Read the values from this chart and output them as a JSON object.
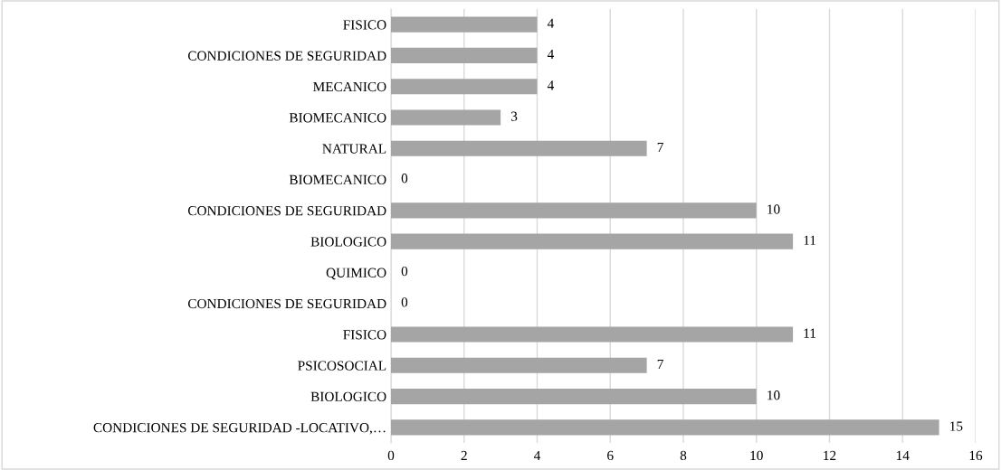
{
  "chart_data": {
    "type": "bar",
    "orientation": "horizontal",
    "categories": [
      "FISICO",
      "CONDICIONES DE SEGURIDAD",
      "MECANICO",
      "BIOMECANICO",
      "NATURAL",
      "BIOMECANICO",
      "CONDICIONES DE SEGURIDAD",
      "BIOLOGICO",
      "QUIMICO",
      "CONDICIONES DE SEGURIDAD",
      "FISICO",
      "PSICOSOCIAL",
      "BIOLOGICO",
      "CONDICIONES DE SEGURIDAD -LOCATIVO,…"
    ],
    "values": [
      4,
      4,
      4,
      3,
      7,
      0,
      10,
      11,
      0,
      0,
      11,
      7,
      10,
      15
    ],
    "color": "#a5a5a5",
    "xlim": [
      0,
      16
    ],
    "xticks": [
      0,
      2,
      4,
      6,
      8,
      10,
      12,
      14,
      16
    ],
    "grid": "x",
    "data_labels": true,
    "legend": false
  }
}
